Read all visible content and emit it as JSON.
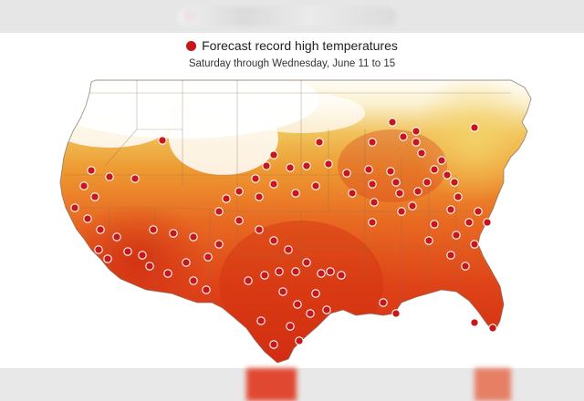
{
  "legend": {
    "label": "Forecast record high temperatures",
    "marker_color": "#c8161b"
  },
  "subtitle": "Saturday through Wednesday, June 11 to 15",
  "map": {
    "region": "Contiguous United States",
    "color_scale": [
      "#ffffff",
      "#f7e7b0",
      "#edb43a",
      "#ec8b2a",
      "#e5561e",
      "#d62f14"
    ],
    "marker_icon": "record-high-dot",
    "record_high_location_count": 98
  }
}
